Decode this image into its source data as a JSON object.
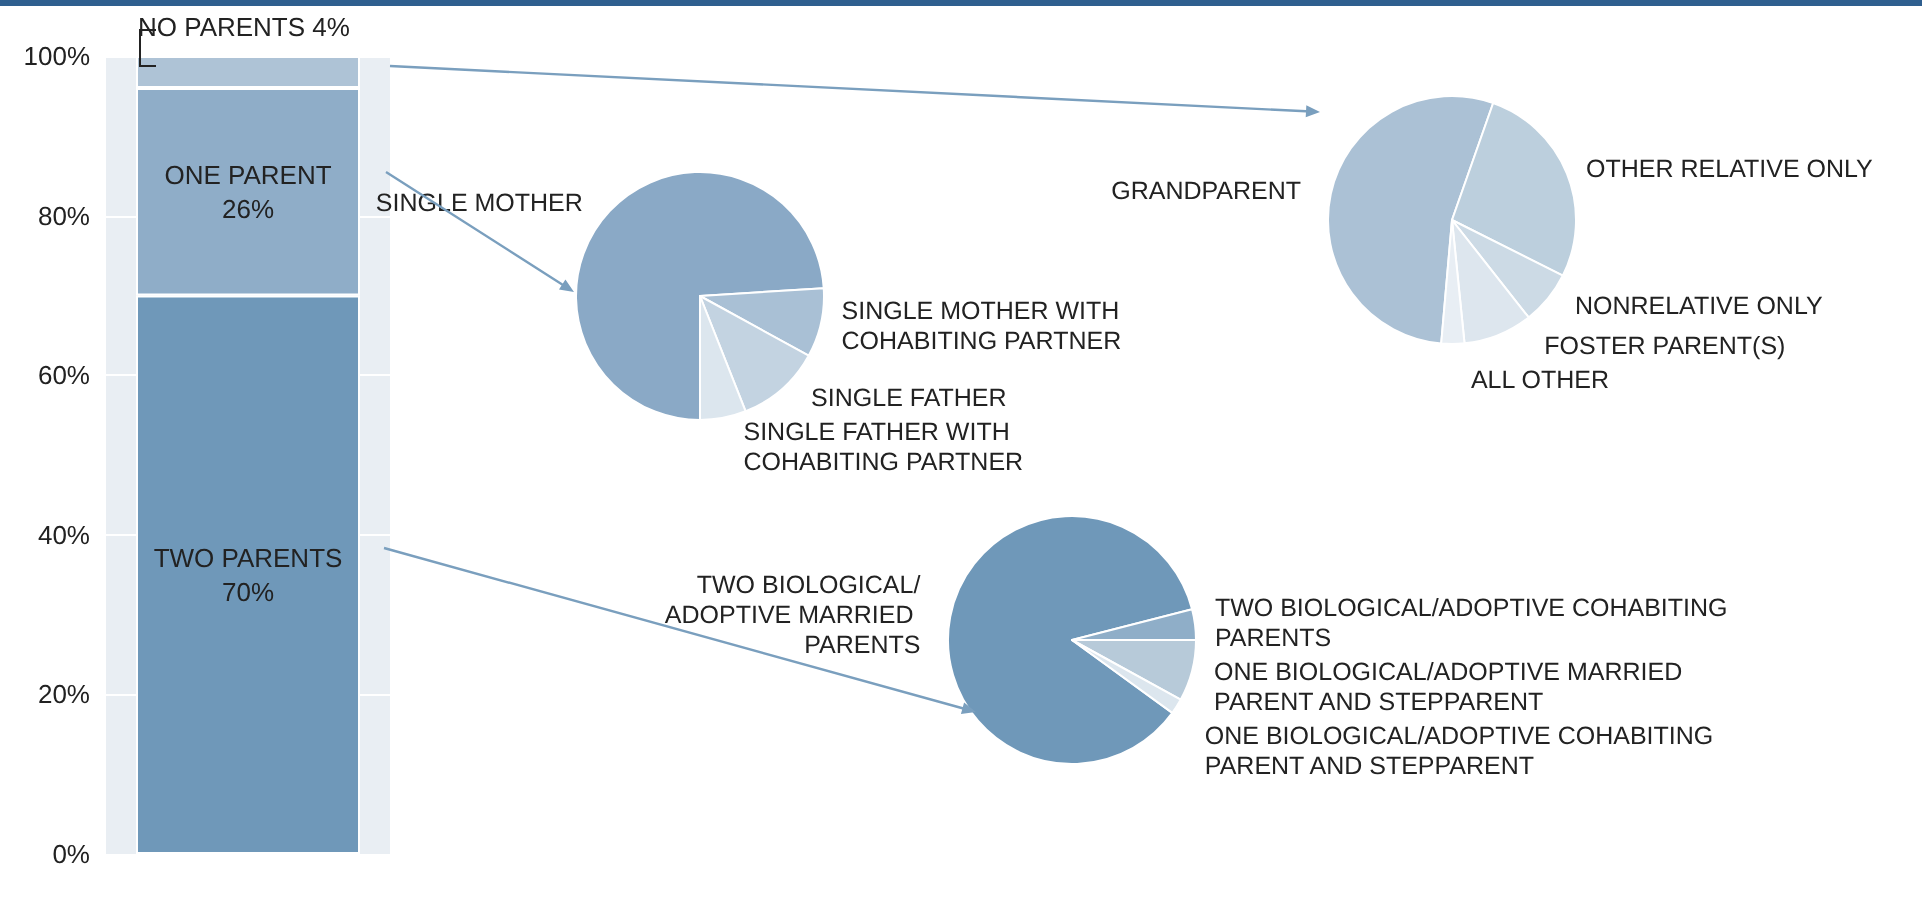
{
  "chart_data": [
    {
      "type": "bar",
      "stacked": true,
      "categories": [
        null
      ],
      "legend": false,
      "grid": "y",
      "ylim": [
        0,
        100
      ],
      "yticks": [
        {
          "value": 0,
          "label": "0%"
        },
        {
          "value": 20,
          "label": "20%"
        },
        {
          "value": 40,
          "label": "40%"
        },
        {
          "value": 60,
          "label": "60%"
        },
        {
          "value": 80,
          "label": "80%"
        },
        {
          "value": 100,
          "label": "100%"
        }
      ],
      "series": [
        {
          "name": "TWO PARENTS",
          "color": "#6f98b9",
          "values": [
            70
          ],
          "value_labels": [
            "70%"
          ]
        },
        {
          "name": "ONE PARENT",
          "color": "#8fadc8",
          "values": [
            26
          ],
          "value_labels": [
            "26%"
          ]
        },
        {
          "name": "NO PARENTS",
          "color": "#aec3d6",
          "values": [
            4
          ],
          "value_labels": [
            "4%"
          ]
        }
      ]
    },
    {
      "type": "pie",
      "categories": [
        "SINGLE MOTHER",
        "SINGLE MOTHER WITH COHABITING PARTNER",
        "SINGLE FATHER",
        "SINGLE FATHER WITH COHABITING PARTNER"
      ],
      "values": [
        74,
        9,
        11,
        6
      ],
      "colors": [
        "#8aa9c6",
        "#a9c0d5",
        "#c3d3e1",
        "#dce6ee"
      ]
    },
    {
      "type": "pie",
      "categories": [
        "GRANDPARENT",
        "OTHER RELATIVE ONLY",
        "NONRELATIVE ONLY",
        "FOSTER PARENT(S)",
        "ALL OTHER"
      ],
      "values": [
        54,
        27,
        7,
        9,
        3
      ],
      "colors": [
        "#abc1d5",
        "#bccfdd",
        "#ccdae5",
        "#dde6ee",
        "#e8eef4"
      ]
    },
    {
      "type": "pie",
      "categories": [
        "TWO BIOLOGICAL/ADOPTIVE MARRIED PARENTS",
        "TWO BIOLOGICAL/ADOPTIVE COHABITING PARENTS",
        "ONE BIOLOGICAL/ADOPTIVE MARRIED PARENT AND STEPPARENT",
        "ONE BIOLOGICAL/ADOPTIVE COHABITING PARENT AND STEPPARENT"
      ],
      "values": [
        86,
        4,
        8,
        2
      ],
      "colors": [
        "#6f98b9",
        "#8faec8",
        "#b7cad9",
        "#dce6ee"
      ]
    }
  ]
}
